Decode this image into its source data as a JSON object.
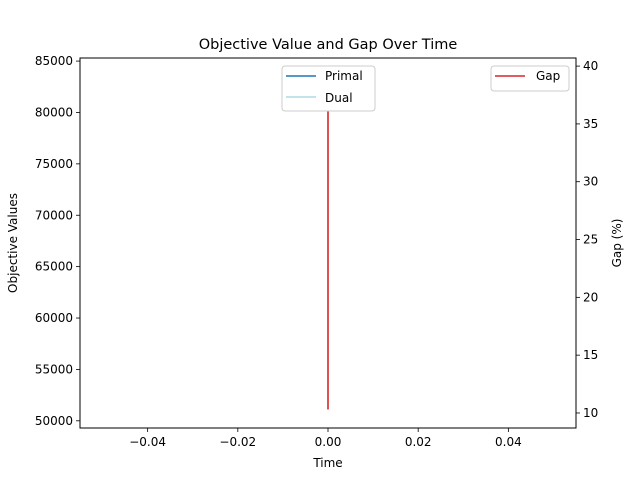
{
  "chart_data": {
    "type": "line",
    "title": "Objective Value and Gap Over Time",
    "xlabel": "Time",
    "ylabel": "Objective Values",
    "ylabel_right": "Gap (%)",
    "xlim": [
      -0.055,
      0.055
    ],
    "ylim": [
      49300,
      85300
    ],
    "ylim_right": [
      8.7,
      40.7
    ],
    "x_ticks": [
      -0.04,
      -0.02,
      0.0,
      0.02,
      0.04
    ],
    "x_tick_labels": [
      "−0.04",
      "−0.02",
      "0.00",
      "0.02",
      "0.04"
    ],
    "y_ticks": [
      50000,
      55000,
      60000,
      65000,
      70000,
      75000,
      80000,
      85000
    ],
    "y_tick_labels": [
      "50000",
      "55000",
      "60000",
      "65000",
      "70000",
      "75000",
      "80000",
      "85000"
    ],
    "y_ticks_right": [
      10,
      15,
      20,
      25,
      30,
      35,
      40
    ],
    "y_tick_labels_right": [
      "10",
      "15",
      "20",
      "25",
      "30",
      "35",
      "40"
    ],
    "grid": false,
    "legend_left_placement": "upper-center",
    "legend_right_placement": "upper-right",
    "series": [
      {
        "name": "Primal",
        "axis": "left",
        "color": "#1f77b4",
        "x": [
          0.0,
          0.0
        ],
        "y": [
          85000,
          85000
        ]
      },
      {
        "name": "Dual",
        "axis": "left",
        "color": "#add8e6",
        "x": [
          0.0,
          0.0
        ],
        "y": [
          50800,
          50800
        ]
      },
      {
        "name": "Gap",
        "axis": "right",
        "color": "#d62728",
        "x": [
          0.0,
          0.0
        ],
        "y": [
          10.3,
          39.8
        ]
      }
    ]
  }
}
